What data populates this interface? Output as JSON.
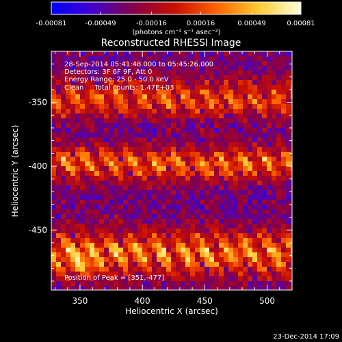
{
  "colors": {
    "background": "#000000",
    "text": "#ffffff",
    "colorbar_stops": [
      "#0000ff",
      "#4400cc",
      "#880044",
      "#cc1100",
      "#ff6600",
      "#ffcc33",
      "#ffffdd"
    ]
  },
  "colorbar": {
    "tick_labels": [
      "-0.00081",
      "-0.00049",
      "-0.00016",
      "0.00016",
      "0.00049",
      "0.00081"
    ],
    "unit_label": "(photons cm⁻² s⁻¹ asec⁻²)"
  },
  "chart_data": {
    "type": "heatmap",
    "title": "Reconstructed RHESSI Image",
    "xlabel": "Heliocentric X (arcsec)",
    "ylabel": "Heliocentric Y (arcsec)",
    "xlim": [
      327,
      520
    ],
    "ylim": [
      -497,
      -310
    ],
    "x_ticks": [
      350,
      400,
      450,
      500
    ],
    "y_ticks": [
      -350,
      -400,
      -450
    ],
    "color_range": [
      -0.00081,
      0.00081
    ],
    "annotations": [
      "28-Sep-2014 05:41:48.000 to 05:45:26.000",
      "Detectors: 3F 6F 9F, Att 0",
      "Energy Range: 25.0 - 50.0 keV",
      "Clean     Total counts: 1.47E+03"
    ],
    "peak_label": "Position of Peak = [351,-477]",
    "peak": [
      351,
      -477
    ],
    "bands": [
      {
        "y_center": -347,
        "half_width": 17,
        "level": 0.72
      },
      {
        "y_center": -398,
        "half_width": 15,
        "level": 0.8
      },
      {
        "y_center": -468,
        "half_width": 20,
        "level": 0.85
      }
    ]
  },
  "footer": {
    "timestamp": "23-Dec-2014 17:09"
  }
}
